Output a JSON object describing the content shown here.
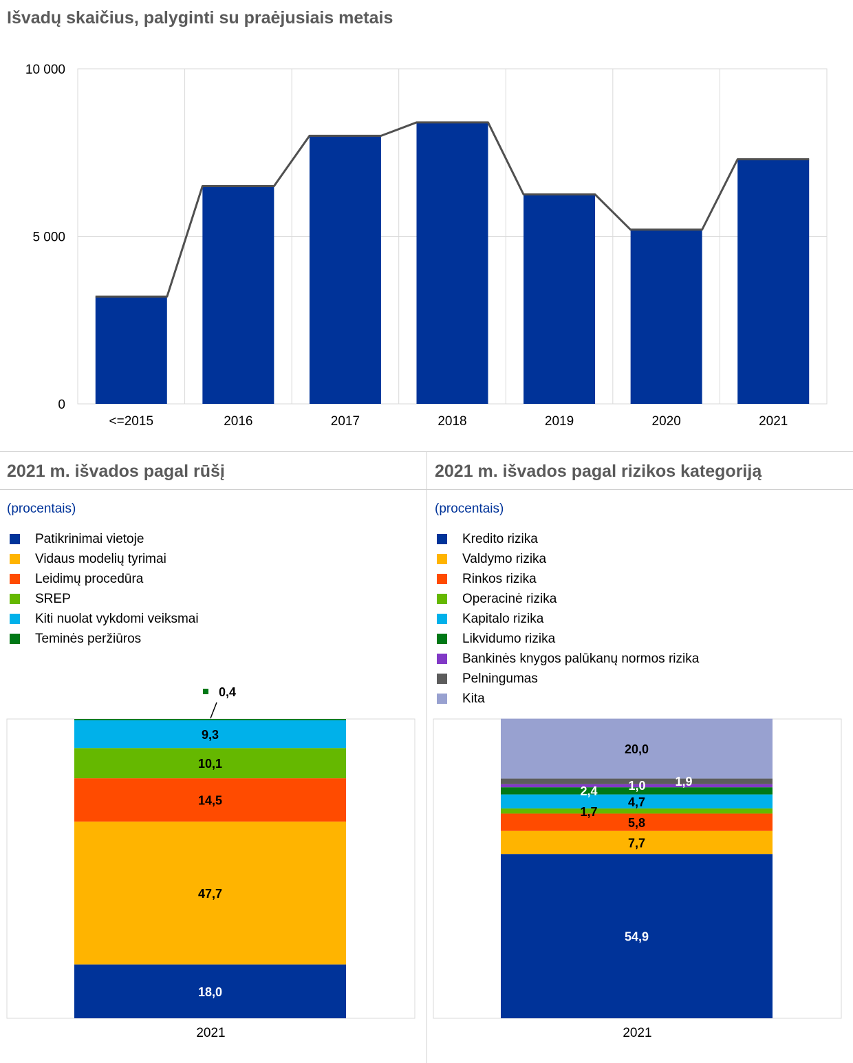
{
  "chart_top": {
    "title": "Išvadų skaičius, palyginti su praėjusiais metais",
    "chart_data": {
      "type": "bar",
      "categories": [
        "<=2015",
        "2016",
        "2017",
        "2018",
        "2019",
        "2020",
        "2021"
      ],
      "values": [
        3200,
        6500,
        8000,
        8400,
        6250,
        5200,
        7300
      ],
      "ylim": [
        0,
        10000
      ],
      "yticks": [
        0,
        5000,
        10000
      ],
      "ytick_labels": [
        "0",
        "5 000",
        "10 000"
      ],
      "overlay_line": true,
      "grid": true,
      "bar_color": "#003399",
      "line_color": "#505050"
    }
  },
  "chart_left": {
    "title": "2021 m. išvados pagal rūšį",
    "subtitle": "(procentais)",
    "chart_data": {
      "type": "bar",
      "stacked": true,
      "categories": [
        "2021"
      ],
      "series": [
        {
          "name": "Patikrinimai vietoje",
          "value": 18.0,
          "label": "18,0",
          "color": "#003399",
          "label_color": "#ffffff"
        },
        {
          "name": "Vidaus modelių tyrimai",
          "value": 47.7,
          "label": "47,7",
          "color": "#ffb400",
          "label_color": "#000000"
        },
        {
          "name": "Leidimų procedūra",
          "value": 14.5,
          "label": "14,5",
          "color": "#ff4b00",
          "label_color": "#000000"
        },
        {
          "name": "SREP",
          "value": 10.1,
          "label": "10,1",
          "color": "#65b800",
          "label_color": "#000000"
        },
        {
          "name": "Kiti nuolat vykdomi veiksmai",
          "value": 9.3,
          "label": "9,3",
          "color": "#00b1ea",
          "label_color": "#000000"
        },
        {
          "name": "Teminės peržiūros",
          "value": 0.4,
          "label": "0,4",
          "color": "#007816",
          "label_color": "#000000"
        }
      ],
      "ylim": [
        0,
        100
      ]
    }
  },
  "chart_right": {
    "title": "2021 m. išvados pagal rizikos kategoriją",
    "subtitle": "(procentais)",
    "chart_data": {
      "type": "bar",
      "stacked": true,
      "categories": [
        "2021"
      ],
      "series": [
        {
          "name": "Kredito rizika",
          "value": 54.9,
          "label": "54,9",
          "color": "#003399",
          "label_color": "#ffffff"
        },
        {
          "name": "Valdymo rizika",
          "value": 7.7,
          "label": "7,7",
          "color": "#ffb400",
          "label_color": "#000000"
        },
        {
          "name": "Rinkos rizika",
          "value": 5.8,
          "label": "5,8",
          "color": "#ff4b00",
          "label_color": "#000000"
        },
        {
          "name": "Operacinė rizika",
          "value": 1.7,
          "label": "1,7",
          "color": "#65b800",
          "label_color": "#000000"
        },
        {
          "name": "Kapitalo rizika",
          "value": 4.7,
          "label": "4,7",
          "color": "#00b1ea",
          "label_color": "#000000"
        },
        {
          "name": "Likvidumo rizika",
          "value": 2.4,
          "label": "2,4",
          "color": "#007816",
          "label_color": "#ffffff"
        },
        {
          "name": "Bankinės knygos palūkanų normos rizika",
          "value": 1.0,
          "label": "1,0",
          "color": "#8139c6",
          "label_color": "#ffffff"
        },
        {
          "name": "Pelningumas",
          "value": 1.9,
          "label": "1,9",
          "color": "#5c5c5c",
          "label_color": "#ffffff"
        },
        {
          "name": "Kita",
          "value": 20.0,
          "label": "20,0",
          "color": "#98a1d0",
          "label_color": "#000000"
        }
      ],
      "ylim": [
        0,
        100
      ]
    }
  }
}
